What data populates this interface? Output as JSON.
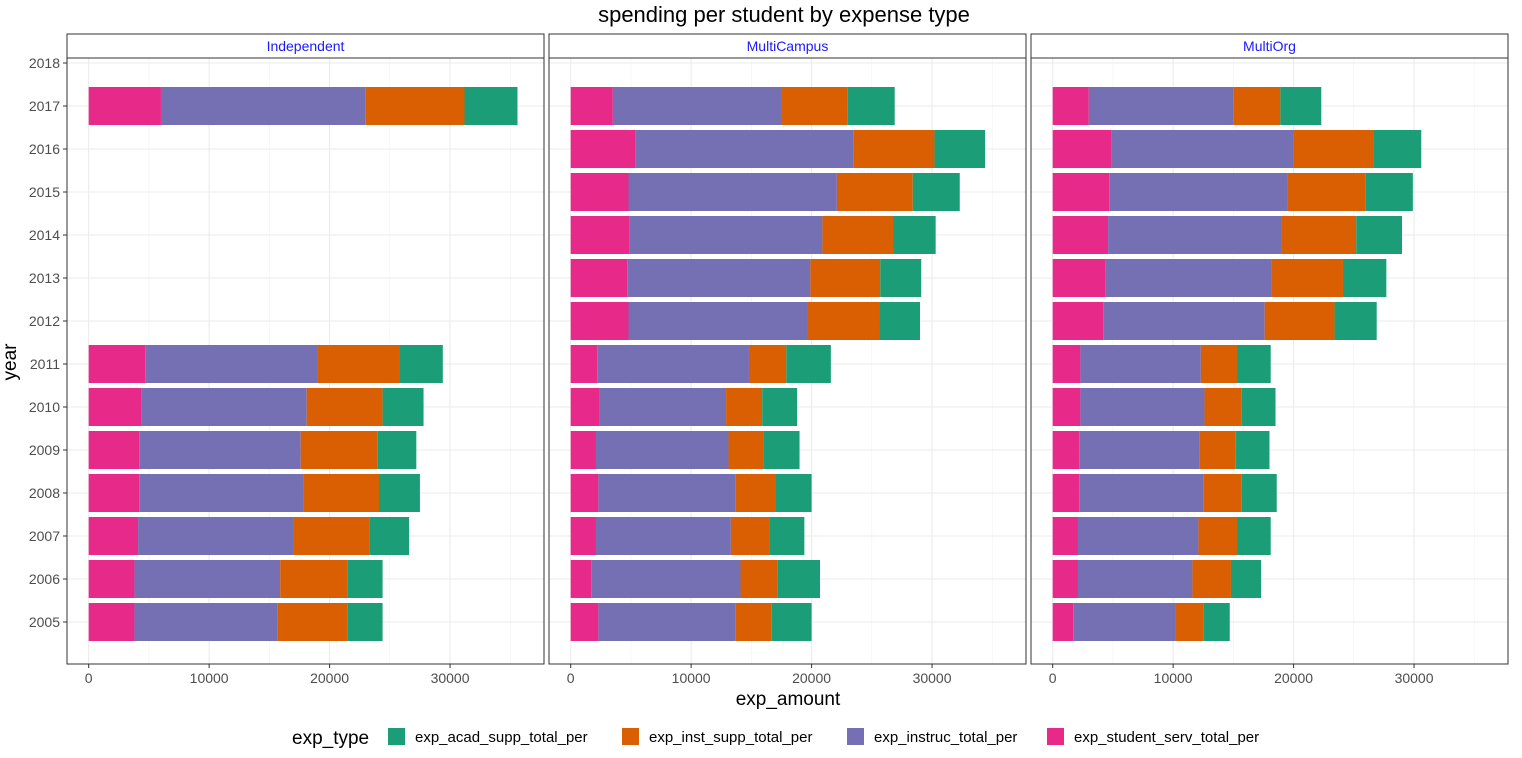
{
  "chart_data": {
    "type": "bar",
    "orientation": "horizontal",
    "stacked": true,
    "title": "spending per student by expense type",
    "xlabel": "exp_amount",
    "ylabel": "year",
    "xlim": [
      -1800,
      37800
    ],
    "x_ticks": [
      "0",
      "10000",
      "20000",
      "30000"
    ],
    "x_tick_values": [
      0,
      10000,
      20000,
      30000
    ],
    "y_ticks": [
      "2005",
      "2006",
      "2007",
      "2008",
      "2009",
      "2010",
      "2011",
      "2012",
      "2013",
      "2014",
      "2015",
      "2016",
      "2017",
      "2018"
    ],
    "grid": true,
    "legend": {
      "title": "exp_type",
      "position": "bottom",
      "entries": [
        {
          "label": "exp_acad_supp_total_per",
          "color": "#1b9e77"
        },
        {
          "label": "exp_inst_supp_total_per",
          "color": "#d95f02"
        },
        {
          "label": "exp_instruc_total_per",
          "color": "#7570b3"
        },
        {
          "label": "exp_student_serv_total_per",
          "color": "#e7298a"
        }
      ]
    },
    "stack_order": [
      "exp_student_serv_total_per",
      "exp_instruc_total_per",
      "exp_inst_supp_total_per",
      "exp_acad_supp_total_per"
    ],
    "colors": {
      "exp_student_serv_total_per": "#e7298a",
      "exp_instruc_total_per": "#7570b3",
      "exp_inst_supp_total_per": "#d95f02",
      "exp_acad_supp_total_per": "#1b9e77"
    },
    "panels": [
      {
        "name": "Independent",
        "data": [
          {
            "year": "2005",
            "exp_student_serv_total_per": 3800,
            "exp_instruc_total_per": 11900,
            "exp_inst_supp_total_per": 5800,
            "exp_acad_supp_total_per": 2900
          },
          {
            "year": "2006",
            "exp_student_serv_total_per": 3800,
            "exp_instruc_total_per": 12100,
            "exp_inst_supp_total_per": 5600,
            "exp_acad_supp_total_per": 2900
          },
          {
            "year": "2007",
            "exp_student_serv_total_per": 4100,
            "exp_instruc_total_per": 12900,
            "exp_inst_supp_total_per": 6300,
            "exp_acad_supp_total_per": 3300
          },
          {
            "year": "2008",
            "exp_student_serv_total_per": 4200,
            "exp_instruc_total_per": 13600,
            "exp_inst_supp_total_per": 6300,
            "exp_acad_supp_total_per": 3400
          },
          {
            "year": "2009",
            "exp_student_serv_total_per": 4200,
            "exp_instruc_total_per": 13400,
            "exp_inst_supp_total_per": 6400,
            "exp_acad_supp_total_per": 3200
          },
          {
            "year": "2010",
            "exp_student_serv_total_per": 4400,
            "exp_instruc_total_per": 13700,
            "exp_inst_supp_total_per": 6300,
            "exp_acad_supp_total_per": 3400
          },
          {
            "year": "2011",
            "exp_student_serv_total_per": 4700,
            "exp_instruc_total_per": 14300,
            "exp_inst_supp_total_per": 6800,
            "exp_acad_supp_total_per": 3600
          },
          {
            "year": "2017",
            "exp_student_serv_total_per": 6000,
            "exp_instruc_total_per": 17000,
            "exp_inst_supp_total_per": 8200,
            "exp_acad_supp_total_per": 4400
          }
        ]
      },
      {
        "name": "MultiCampus",
        "data": [
          {
            "year": "2005",
            "exp_student_serv_total_per": 2300,
            "exp_instruc_total_per": 11400,
            "exp_inst_supp_total_per": 3000,
            "exp_acad_supp_total_per": 3300
          },
          {
            "year": "2006",
            "exp_student_serv_total_per": 1700,
            "exp_instruc_total_per": 12400,
            "exp_inst_supp_total_per": 3100,
            "exp_acad_supp_total_per": 3500
          },
          {
            "year": "2007",
            "exp_student_serv_total_per": 2100,
            "exp_instruc_total_per": 11200,
            "exp_inst_supp_total_per": 3200,
            "exp_acad_supp_total_per": 2900
          },
          {
            "year": "2008",
            "exp_student_serv_total_per": 2300,
            "exp_instruc_total_per": 11400,
            "exp_inst_supp_total_per": 3300,
            "exp_acad_supp_total_per": 3000
          },
          {
            "year": "2009",
            "exp_student_serv_total_per": 2100,
            "exp_instruc_total_per": 11000,
            "exp_inst_supp_total_per": 2900,
            "exp_acad_supp_total_per": 3000
          },
          {
            "year": "2010",
            "exp_student_serv_total_per": 2400,
            "exp_instruc_total_per": 10500,
            "exp_inst_supp_total_per": 3000,
            "exp_acad_supp_total_per": 2900
          },
          {
            "year": "2011",
            "exp_student_serv_total_per": 2200,
            "exp_instruc_total_per": 12600,
            "exp_inst_supp_total_per": 3100,
            "exp_acad_supp_total_per": 3700
          },
          {
            "year": "2012",
            "exp_student_serv_total_per": 4800,
            "exp_instruc_total_per": 14900,
            "exp_inst_supp_total_per": 5900,
            "exp_acad_supp_total_per": 3400
          },
          {
            "year": "2013",
            "exp_student_serv_total_per": 4700,
            "exp_instruc_total_per": 15200,
            "exp_inst_supp_total_per": 5800,
            "exp_acad_supp_total_per": 3400
          },
          {
            "year": "2014",
            "exp_student_serv_total_per": 4900,
            "exp_instruc_total_per": 16000,
            "exp_inst_supp_total_per": 5900,
            "exp_acad_supp_total_per": 3500
          },
          {
            "year": "2015",
            "exp_student_serv_total_per": 4800,
            "exp_instruc_total_per": 17300,
            "exp_inst_supp_total_per": 6300,
            "exp_acad_supp_total_per": 3900
          },
          {
            "year": "2016",
            "exp_student_serv_total_per": 5400,
            "exp_instruc_total_per": 18100,
            "exp_inst_supp_total_per": 6700,
            "exp_acad_supp_total_per": 4200
          },
          {
            "year": "2017",
            "exp_student_serv_total_per": 3500,
            "exp_instruc_total_per": 14000,
            "exp_inst_supp_total_per": 5500,
            "exp_acad_supp_total_per": 3900
          }
        ]
      },
      {
        "name": "MultiOrg",
        "data": [
          {
            "year": "2005",
            "exp_student_serv_total_per": 1700,
            "exp_instruc_total_per": 8500,
            "exp_inst_supp_total_per": 2300,
            "exp_acad_supp_total_per": 2200
          },
          {
            "year": "2006",
            "exp_student_serv_total_per": 2100,
            "exp_instruc_total_per": 9500,
            "exp_inst_supp_total_per": 3200,
            "exp_acad_supp_total_per": 2500
          },
          {
            "year": "2007",
            "exp_student_serv_total_per": 2100,
            "exp_instruc_total_per": 10000,
            "exp_inst_supp_total_per": 3200,
            "exp_acad_supp_total_per": 2800
          },
          {
            "year": "2008",
            "exp_student_serv_total_per": 2200,
            "exp_instruc_total_per": 10300,
            "exp_inst_supp_total_per": 3200,
            "exp_acad_supp_total_per": 2900
          },
          {
            "year": "2009",
            "exp_student_serv_total_per": 2200,
            "exp_instruc_total_per": 10000,
            "exp_inst_supp_total_per": 3000,
            "exp_acad_supp_total_per": 2800
          },
          {
            "year": "2010",
            "exp_student_serv_total_per": 2300,
            "exp_instruc_total_per": 10300,
            "exp_inst_supp_total_per": 3100,
            "exp_acad_supp_total_per": 2800
          },
          {
            "year": "2011",
            "exp_student_serv_total_per": 2300,
            "exp_instruc_total_per": 10000,
            "exp_inst_supp_total_per": 3000,
            "exp_acad_supp_total_per": 2800
          },
          {
            "year": "2012",
            "exp_student_serv_total_per": 4200,
            "exp_instruc_total_per": 13400,
            "exp_inst_supp_total_per": 5800,
            "exp_acad_supp_total_per": 3500
          },
          {
            "year": "2013",
            "exp_student_serv_total_per": 4400,
            "exp_instruc_total_per": 13800,
            "exp_inst_supp_total_per": 5900,
            "exp_acad_supp_total_per": 3600
          },
          {
            "year": "2014",
            "exp_student_serv_total_per": 4600,
            "exp_instruc_total_per": 14400,
            "exp_inst_supp_total_per": 6200,
            "exp_acad_supp_total_per": 3800
          },
          {
            "year": "2015",
            "exp_student_serv_total_per": 4700,
            "exp_instruc_total_per": 14800,
            "exp_inst_supp_total_per": 6500,
            "exp_acad_supp_total_per": 3900
          },
          {
            "year": "2016",
            "exp_student_serv_total_per": 4900,
            "exp_instruc_total_per": 15100,
            "exp_inst_supp_total_per": 6600,
            "exp_acad_supp_total_per": 4000
          },
          {
            "year": "2017",
            "exp_student_serv_total_per": 3000,
            "exp_instruc_total_per": 12000,
            "exp_inst_supp_total_per": 3900,
            "exp_acad_supp_total_per": 3400
          }
        ]
      }
    ]
  }
}
